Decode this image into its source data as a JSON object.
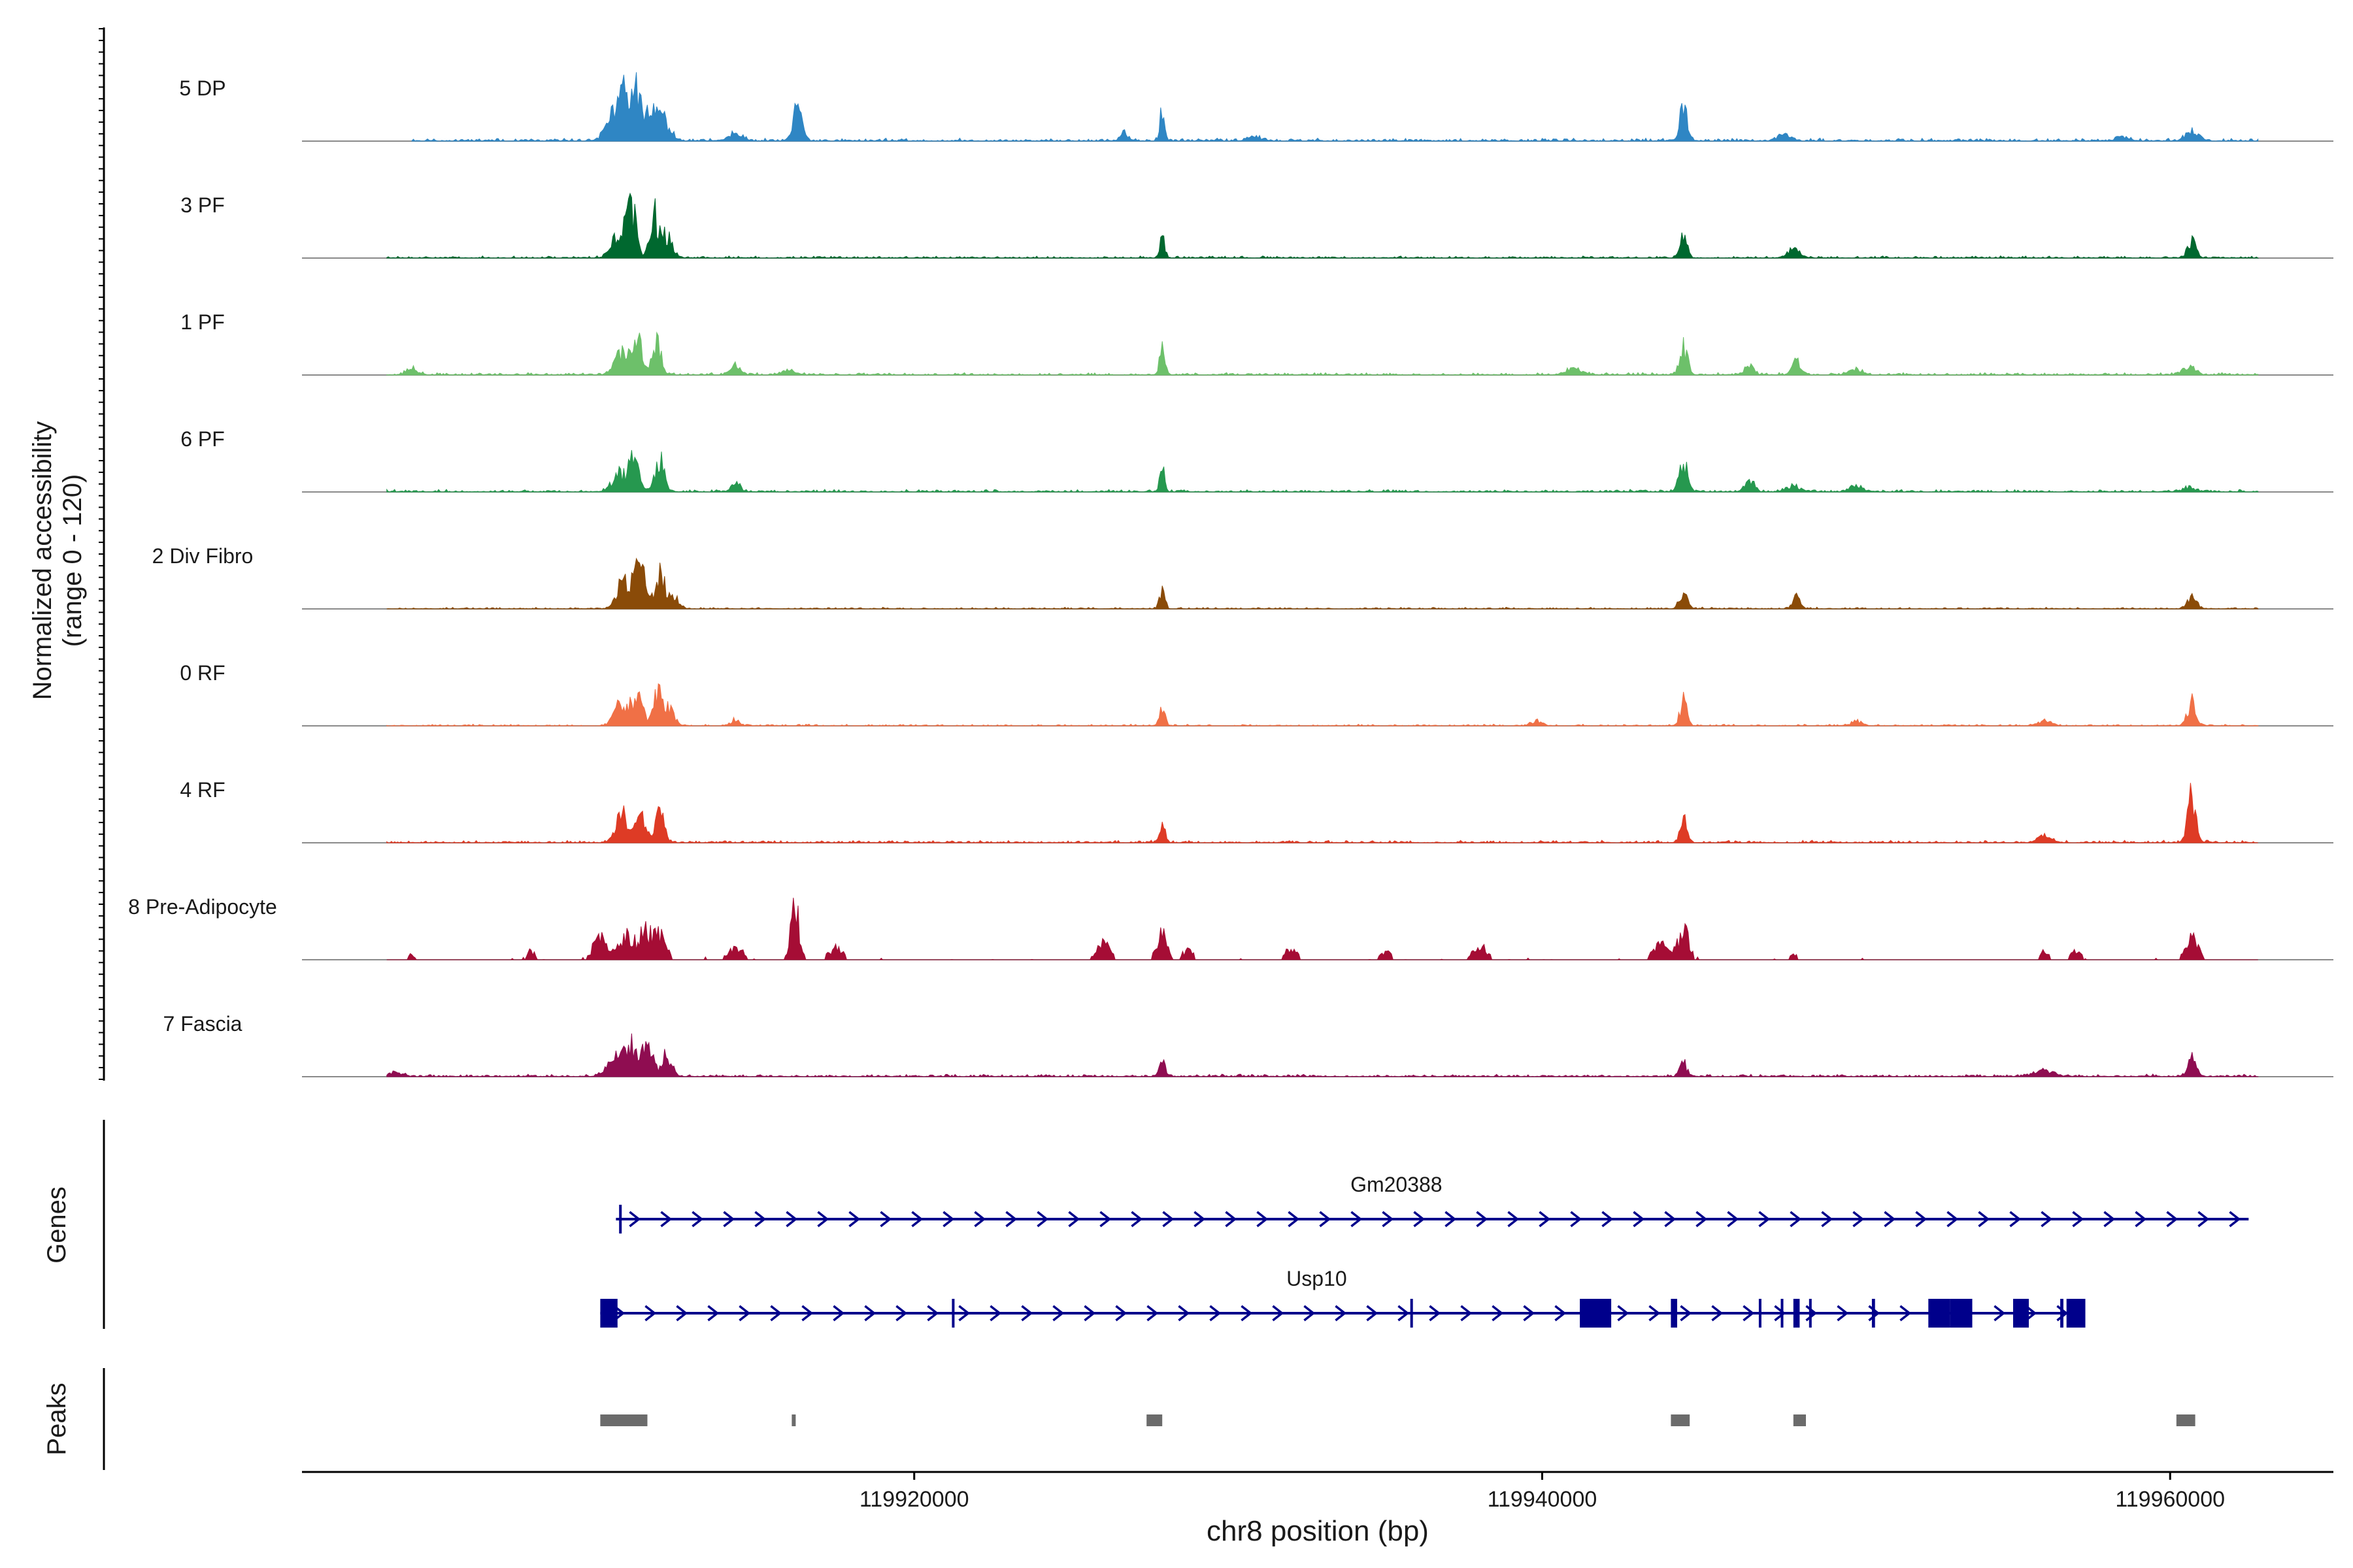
{
  "chart_data": {
    "type": "area",
    "title": "",
    "ylabel_lines": [
      "Normalized accessibility",
      "(range 0 - 120)"
    ],
    "xlabel": "chr8 position (bp)",
    "xlim": [
      119900500,
      119965200
    ],
    "ylim": [
      0,
      120
    ],
    "x_ticks": [
      {
        "value": 119920000,
        "label": "119920000"
      },
      {
        "value": 119940000,
        "label": "119940000"
      },
      {
        "value": 119960000,
        "label": "119960000"
      }
    ],
    "colors": {
      "gene": "#00008b",
      "peak": "#6b6b6b",
      "baseline": "#8a8a8a",
      "axis": "#000000"
    },
    "series": [
      {
        "name": "5 DP",
        "color": "#2f86c4",
        "data_range": [
          119904000,
          119962800
        ],
        "noise": 3.5,
        "sparse": false,
        "seed": 11,
        "peaks": [
          [
            119910500,
            40,
            260
          ],
          [
            119910900,
            58,
            160
          ],
          [
            119911200,
            62,
            140
          ],
          [
            119911600,
            34,
            180
          ],
          [
            119912000,
            28,
            200
          ],
          [
            119914300,
            10,
            200
          ],
          [
            119916300,
            44,
            140
          ],
          [
            119926700,
            10,
            120
          ],
          [
            119927900,
            42,
            70
          ],
          [
            119930800,
            6,
            200
          ],
          [
            119944500,
            52,
            110
          ],
          [
            119947700,
            8,
            200
          ],
          [
            119958500,
            6,
            200
          ],
          [
            119960700,
            12,
            200
          ]
        ]
      },
      {
        "name": "3 PF",
        "color": "#00682f",
        "data_range": [
          119903200,
          119962800
        ],
        "noise": 2.5,
        "sparse": false,
        "seed": 23,
        "peaks": [
          [
            119910600,
            30,
            240
          ],
          [
            119911000,
            55,
            150
          ],
          [
            119911700,
            60,
            120
          ],
          [
            119912100,
            28,
            180
          ],
          [
            119927900,
            24,
            80
          ],
          [
            119944500,
            26,
            110
          ],
          [
            119948000,
            12,
            200
          ],
          [
            119960700,
            22,
            130
          ]
        ]
      },
      {
        "name": "1 PF",
        "color": "#6dc06a",
        "data_range": [
          119903200,
          119962800
        ],
        "noise": 3,
        "sparse": false,
        "seed": 37,
        "peaks": [
          [
            119904000,
            8,
            180
          ],
          [
            119910700,
            28,
            220
          ],
          [
            119911200,
            42,
            150
          ],
          [
            119911800,
            45,
            130
          ],
          [
            119914300,
            14,
            130
          ],
          [
            119916000,
            6,
            200
          ],
          [
            119927900,
            30,
            90
          ],
          [
            119941000,
            8,
            250
          ],
          [
            119944500,
            34,
            130
          ],
          [
            119946600,
            10,
            150
          ],
          [
            119948100,
            20,
            130
          ],
          [
            119950000,
            8,
            200
          ],
          [
            119960600,
            10,
            200
          ]
        ]
      },
      {
        "name": "6 PF",
        "color": "#26984f",
        "data_range": [
          119903200,
          119962800
        ],
        "noise": 3,
        "sparse": false,
        "seed": 41,
        "peaks": [
          [
            119910600,
            24,
            220
          ],
          [
            119911100,
            46,
            150
          ],
          [
            119911900,
            44,
            140
          ],
          [
            119914300,
            10,
            150
          ],
          [
            119927900,
            28,
            80
          ],
          [
            119944500,
            36,
            130
          ],
          [
            119946600,
            14,
            150
          ],
          [
            119948000,
            8,
            200
          ],
          [
            119950000,
            8,
            200
          ],
          [
            119960600,
            6,
            200
          ]
        ]
      },
      {
        "name": "2 Div Fibro",
        "color": "#8a4b08",
        "data_range": [
          119903200,
          119962800
        ],
        "noise": 2,
        "sparse": false,
        "seed": 53,
        "peaks": [
          [
            119910800,
            40,
            220
          ],
          [
            119911300,
            70,
            150
          ],
          [
            119911900,
            48,
            140
          ],
          [
            119912300,
            20,
            160
          ],
          [
            119927900,
            20,
            90
          ],
          [
            119944500,
            24,
            120
          ],
          [
            119948100,
            14,
            120
          ],
          [
            119960700,
            14,
            140
          ]
        ]
      },
      {
        "name": "0 RF",
        "color": "#f07046",
        "data_range": [
          119903200,
          119962800
        ],
        "noise": 2,
        "sparse": false,
        "seed": 67,
        "peaks": [
          [
            119910700,
            30,
            220
          ],
          [
            119911200,
            44,
            150
          ],
          [
            119911800,
            46,
            130
          ],
          [
            119912200,
            22,
            160
          ],
          [
            119914300,
            8,
            130
          ],
          [
            119927900,
            22,
            90
          ],
          [
            119939800,
            6,
            160
          ],
          [
            119944500,
            32,
            110
          ],
          [
            119950000,
            6,
            160
          ],
          [
            119956000,
            6,
            200
          ],
          [
            119960700,
            32,
            130
          ]
        ]
      },
      {
        "name": "4 RF",
        "color": "#de3b25",
        "data_range": [
          119903200,
          119962800
        ],
        "noise": 3,
        "sparse": false,
        "seed": 79,
        "peaks": [
          [
            119910700,
            34,
            200
          ],
          [
            119911300,
            42,
            150
          ],
          [
            119911900,
            40,
            130
          ],
          [
            119927900,
            22,
            90
          ],
          [
            119944500,
            30,
            110
          ],
          [
            119956000,
            8,
            200
          ],
          [
            119960700,
            58,
            130
          ]
        ]
      },
      {
        "name": "8 Pre-Adipocyte",
        "color": "#a50d35",
        "data_range": [
          119903200,
          119962800
        ],
        "noise": 4,
        "sparse": true,
        "seed": 97,
        "peaks": [
          [
            119904000,
            6,
            120
          ],
          [
            119907800,
            10,
            120
          ],
          [
            119910000,
            26,
            220
          ],
          [
            119910800,
            30,
            200
          ],
          [
            119911400,
            36,
            200
          ],
          [
            119911900,
            28,
            200
          ],
          [
            119914300,
            12,
            250
          ],
          [
            119916200,
            72,
            130
          ],
          [
            119917500,
            14,
            200
          ],
          [
            119926000,
            20,
            200
          ],
          [
            119927900,
            30,
            150
          ],
          [
            119928700,
            12,
            150
          ],
          [
            119932000,
            10,
            200
          ],
          [
            119935000,
            8,
            200
          ],
          [
            119938000,
            14,
            250
          ],
          [
            119943800,
            18,
            250
          ],
          [
            119944500,
            36,
            160
          ],
          [
            119948000,
            6,
            120
          ],
          [
            119956000,
            10,
            120
          ],
          [
            119957000,
            10,
            150
          ],
          [
            119960700,
            28,
            180
          ]
        ]
      },
      {
        "name": "7 Fascia",
        "color": "#8f0d51",
        "data_range": [
          119903200,
          119962800
        ],
        "noise": 3,
        "sparse": false,
        "seed": 131,
        "peaks": [
          [
            119903500,
            6,
            200
          ],
          [
            119910500,
            30,
            240
          ],
          [
            119911000,
            36,
            170
          ],
          [
            119911500,
            44,
            150
          ],
          [
            119912100,
            24,
            180
          ],
          [
            119927900,
            22,
            90
          ],
          [
            119944500,
            18,
            110
          ],
          [
            119956000,
            8,
            300
          ],
          [
            119960700,
            28,
            130
          ]
        ]
      }
    ],
    "genes": [
      {
        "name": "Gm20388",
        "strand": "+",
        "start": 119910500,
        "end": 119962500,
        "exons": [
          [
            119910600,
            119910680
          ]
        ]
      },
      {
        "name": "Usp10",
        "strand": "+",
        "start": 119910000,
        "end": 119957300,
        "exons": [
          [
            119910000,
            119910550
          ],
          [
            119921200,
            119921260
          ],
          [
            119935800,
            119935860
          ],
          [
            119941200,
            119942200
          ],
          [
            119944100,
            119944300
          ],
          [
            119946900,
            119946950
          ],
          [
            119947600,
            119947650
          ],
          [
            119948000,
            119948200
          ],
          [
            119948500,
            119948560
          ],
          [
            119950500,
            119950600
          ],
          [
            119952300,
            119953000
          ],
          [
            119953000,
            119953700
          ],
          [
            119955000,
            119955500
          ],
          [
            119956500,
            119956600
          ],
          [
            119956700,
            119957300
          ]
        ]
      }
    ],
    "peaks": [
      [
        119910000,
        119911500
      ],
      [
        119916100,
        119916200
      ],
      [
        119927400,
        119927900
      ],
      [
        119944100,
        119944700
      ],
      [
        119948000,
        119948400
      ],
      [
        119960200,
        119960800
      ]
    ],
    "panels": {
      "genes_label": "Genes",
      "peaks_label": "Peaks"
    }
  }
}
